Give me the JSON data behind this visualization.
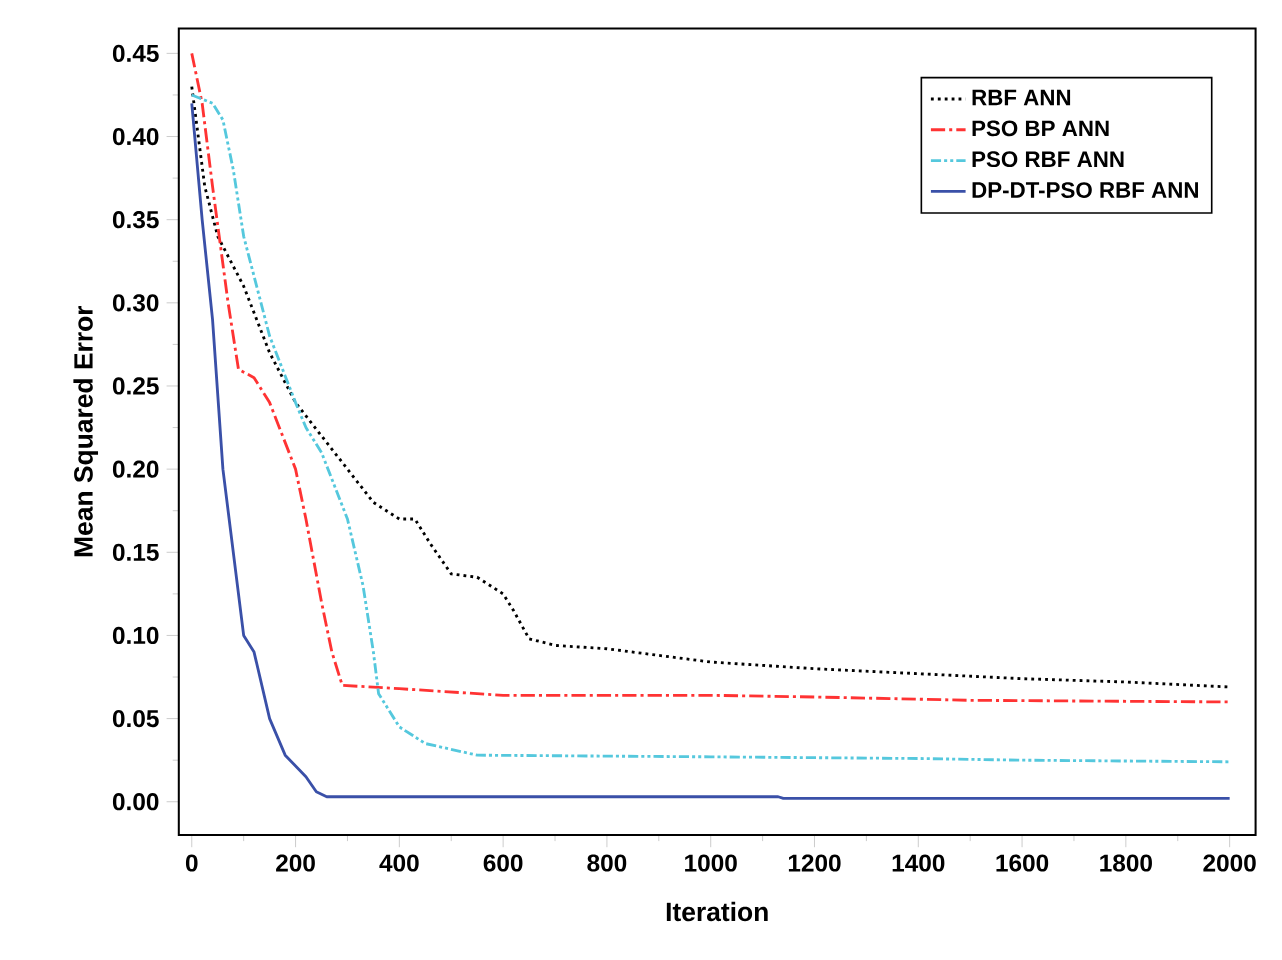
{
  "chart_data": {
    "type": "line",
    "xlabel": "Iteration",
    "ylabel": "Mean Squared Error",
    "xlim": [
      -25,
      2050
    ],
    "ylim": [
      -0.02,
      0.465
    ],
    "xticks": [
      0,
      200,
      400,
      600,
      800,
      1000,
      1200,
      1400,
      1600,
      1800,
      2000
    ],
    "yticks": [
      {
        "value": 0,
        "label": "0.00"
      },
      {
        "value": 0.05,
        "label": "0.05"
      },
      {
        "value": 0.1,
        "label": "0.10"
      },
      {
        "value": 0.15,
        "label": "0.15"
      },
      {
        "value": 0.2,
        "label": "0.20"
      },
      {
        "value": 0.25,
        "label": "0.25"
      },
      {
        "value": 0.3,
        "label": "0.30"
      },
      {
        "value": 0.35,
        "label": "0.35"
      },
      {
        "value": 0.4,
        "label": "0.40"
      },
      {
        "value": 0.45,
        "label": "0.45"
      }
    ],
    "legend": "top right",
    "grid": false,
    "series": [
      {
        "name": "RBF ANN",
        "color": "#000000",
        "line_style": "dotted",
        "x": [
          0,
          25,
          50,
          100,
          150,
          200,
          250,
          300,
          350,
          400,
          430,
          460,
          500,
          550,
          600,
          620,
          650,
          700,
          800,
          900,
          1000,
          1200,
          1400,
          1600,
          1800,
          2000
        ],
        "values": [
          0.43,
          0.37,
          0.34,
          0.31,
          0.27,
          0.24,
          0.22,
          0.2,
          0.18,
          0.17,
          0.17,
          0.155,
          0.137,
          0.135,
          0.125,
          0.115,
          0.098,
          0.094,
          0.092,
          0.088,
          0.084,
          0.08,
          0.077,
          0.074,
          0.072,
          0.069
        ]
      },
      {
        "name": "PSO BP ANN",
        "color": "#ff3333",
        "line_style": "dashdotted",
        "x": [
          0,
          20,
          40,
          70,
          90,
          120,
          150,
          200,
          220,
          250,
          270,
          290,
          400,
          600,
          1000,
          1200,
          1500,
          2000
        ],
        "values": [
          0.45,
          0.42,
          0.37,
          0.3,
          0.26,
          0.255,
          0.24,
          0.2,
          0.17,
          0.12,
          0.09,
          0.07,
          0.068,
          0.064,
          0.064,
          0.063,
          0.061,
          0.06
        ]
      },
      {
        "name": "PSO RBF ANN",
        "color": "#55c8dd",
        "line_style": "dashdotdotted",
        "x": [
          0,
          40,
          60,
          80,
          100,
          150,
          200,
          220,
          250,
          300,
          330,
          350,
          360,
          400,
          450,
          550,
          1000,
          1400,
          1600,
          2000
        ],
        "values": [
          0.425,
          0.42,
          0.41,
          0.38,
          0.34,
          0.28,
          0.24,
          0.225,
          0.21,
          0.17,
          0.13,
          0.09,
          0.065,
          0.045,
          0.035,
          0.028,
          0.027,
          0.026,
          0.025,
          0.024
        ]
      },
      {
        "name": "DP-DT-PSO RBF ANN",
        "color": "#3a50a8",
        "line_style": "solid",
        "x": [
          0,
          20,
          40,
          60,
          100,
          120,
          150,
          180,
          220,
          240,
          260,
          1130,
          1140,
          2000
        ],
        "values": [
          0.42,
          0.35,
          0.29,
          0.2,
          0.1,
          0.09,
          0.05,
          0.028,
          0.015,
          0.006,
          0.003,
          0.003,
          0.002,
          0.002
        ]
      }
    ]
  }
}
